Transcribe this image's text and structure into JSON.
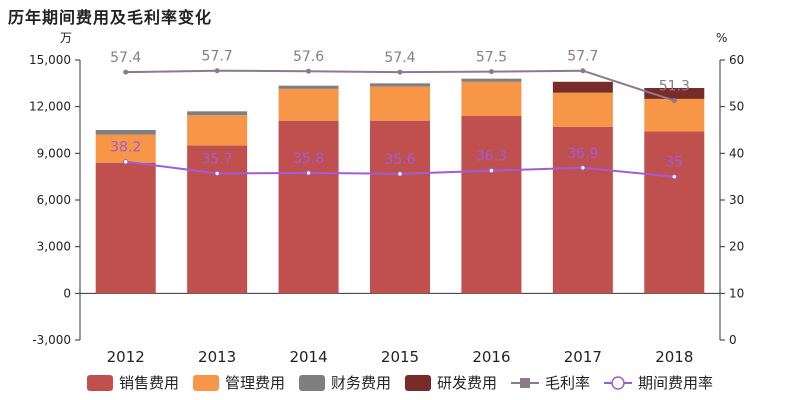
{
  "title": "历年期间费用及毛利率变化",
  "chart_data": {
    "type": "bar",
    "stacked": true,
    "categories": [
      "2012",
      "2013",
      "2014",
      "2015",
      "2016",
      "2017",
      "2018"
    ],
    "y_left": {
      "unit": "万",
      "ticks": [
        -3000,
        0,
        3000,
        6000,
        9000,
        12000,
        15000
      ],
      "tick_labels": [
        "-3,000",
        "0",
        "3,000",
        "6,000",
        "9,000",
        "12,000",
        "15,000"
      ],
      "ylim": [
        -3000,
        15000
      ]
    },
    "y_right": {
      "unit": "%",
      "ticks": [
        0,
        10,
        20,
        30,
        40,
        50,
        60
      ],
      "tick_labels": [
        "0",
        "10",
        "20",
        "30",
        "40",
        "50",
        "60"
      ],
      "ylim": [
        0,
        60
      ]
    },
    "series": [
      {
        "name": "销售费用",
        "kind": "bar",
        "color": "#c0504d",
        "values": [
          8400,
          9500,
          11100,
          11100,
          11400,
          10700,
          10400
        ]
      },
      {
        "name": "管理费用",
        "kind": "bar",
        "color": "#f79646",
        "values": [
          1800,
          1950,
          2050,
          2200,
          2200,
          2200,
          2100
        ]
      },
      {
        "name": "财务费用",
        "kind": "bar",
        "color": "#7f7f7f",
        "values": [
          300,
          250,
          200,
          200,
          200,
          0,
          0
        ]
      },
      {
        "name": "研发费用",
        "kind": "bar",
        "color": "#772c2a",
        "values": [
          0,
          0,
          0,
          0,
          0,
          700,
          700
        ]
      },
      {
        "name": "毛利率",
        "kind": "line",
        "axis": "right",
        "color": "#8a7a8a",
        "values": [
          57.4,
          57.7,
          57.6,
          57.4,
          57.5,
          57.7,
          51.3
        ],
        "labels": [
          "57.4",
          "57.7",
          "57.6",
          "57.4",
          "57.5",
          "57.7",
          "51.3"
        ]
      },
      {
        "name": "期间费用率",
        "kind": "line",
        "axis": "right",
        "color": "#a05cd6",
        "values": [
          38.2,
          35.7,
          35.8,
          35.6,
          36.3,
          36.9,
          35
        ],
        "labels": [
          "38.2",
          "35.7",
          "35.8",
          "35.6",
          "36.3",
          "36.9",
          "35"
        ]
      }
    ],
    "legend_position": "bottom",
    "grid": false
  }
}
